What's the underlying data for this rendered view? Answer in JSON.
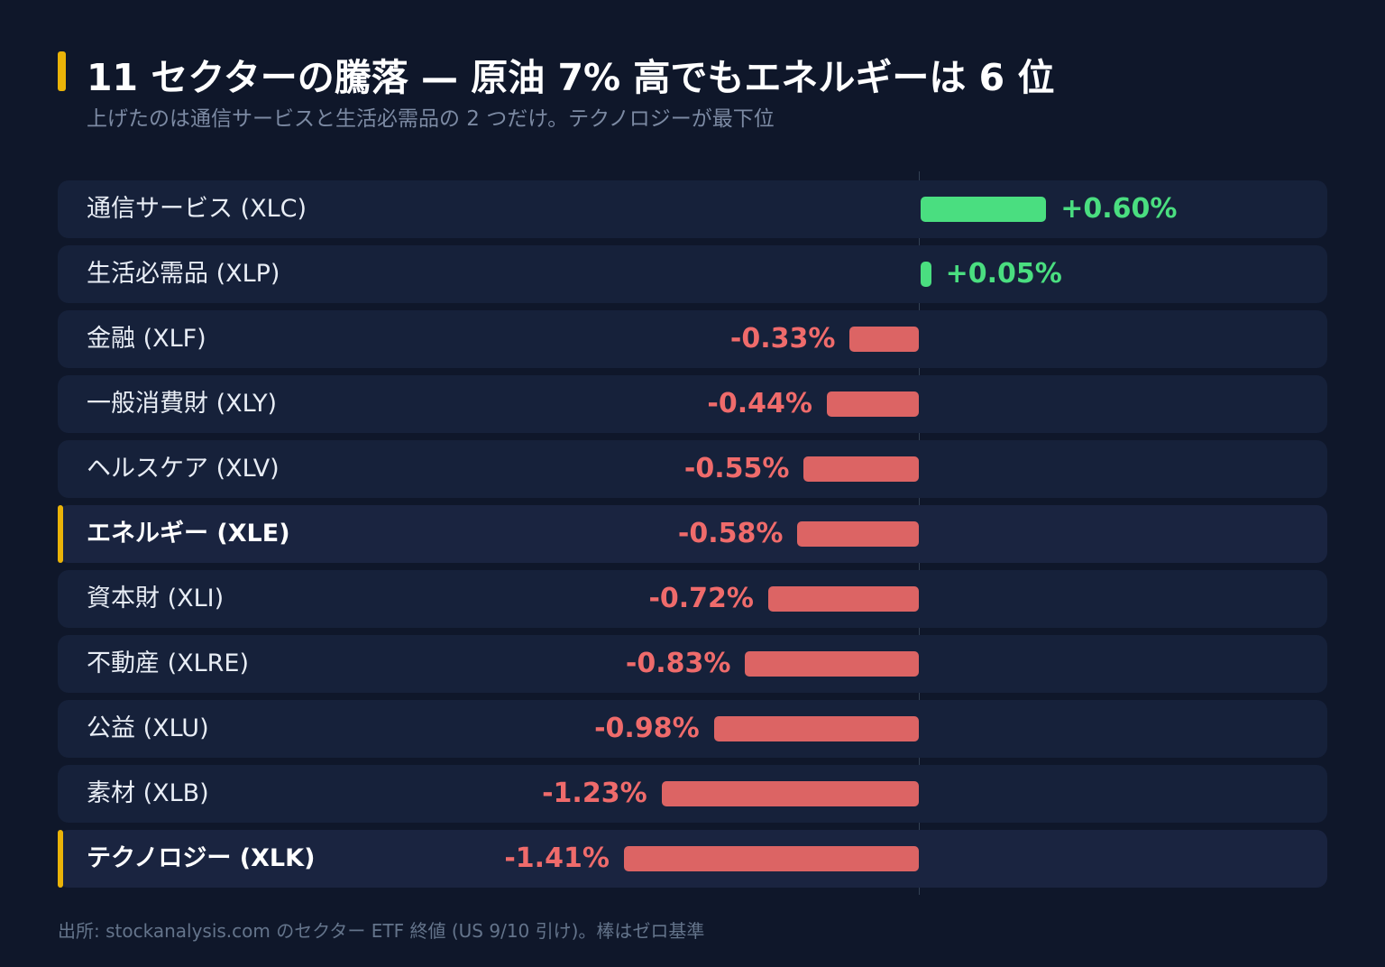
{
  "title": "11 セクターの騰落 — 原油 7% 高でもエネルギーは 6 位",
  "subtitle": "上げたのは通信サービスと生活必需品の 2 つだけ。テクノロジーが最下位",
  "footer": "出所: stockanalysis.com のセクター ETF 終値 (US 9/10 引け)。棒はゼロ基準",
  "colors": {
    "positive": "#4ade80",
    "negative": "#dc6464",
    "highlight_accent": "#eab308",
    "background": "#0f172a"
  },
  "chart_data": {
    "type": "bar",
    "orientation": "horizontal",
    "title": "11 セクターの騰落 — 原油 7% 高でもエネルギーは 6 位",
    "subtitle": "上げたのは通信サービスと生活必需品の 2 つだけ。テクノロジーが最下位",
    "unit": "%",
    "xlim": [
      -1.41,
      0.6
    ],
    "categories": [
      "通信サービス (XLC)",
      "生活必需品 (XLP)",
      "金融 (XLF)",
      "一般消費財 (XLY)",
      "ヘルスケア (XLV)",
      "エネルギー (XLE)",
      "資本財 (XLI)",
      "不動産 (XLRE)",
      "公益 (XLU)",
      "素材 (XLB)",
      "テクノロジー (XLK)"
    ],
    "values": [
      0.6,
      0.05,
      -0.33,
      -0.44,
      -0.55,
      -0.58,
      -0.72,
      -0.83,
      -0.98,
      -1.23,
      -1.41
    ],
    "value_labels": [
      "+0.60%",
      "+0.05%",
      "-0.33%",
      "-0.44%",
      "-0.55%",
      "-0.58%",
      "-0.72%",
      "-0.83%",
      "-0.98%",
      "-1.23%",
      "-1.41%"
    ],
    "highlighted": [
      false,
      false,
      false,
      false,
      false,
      true,
      false,
      false,
      false,
      false,
      true
    ],
    "baseline": 0,
    "grid": false,
    "legend": "none"
  }
}
